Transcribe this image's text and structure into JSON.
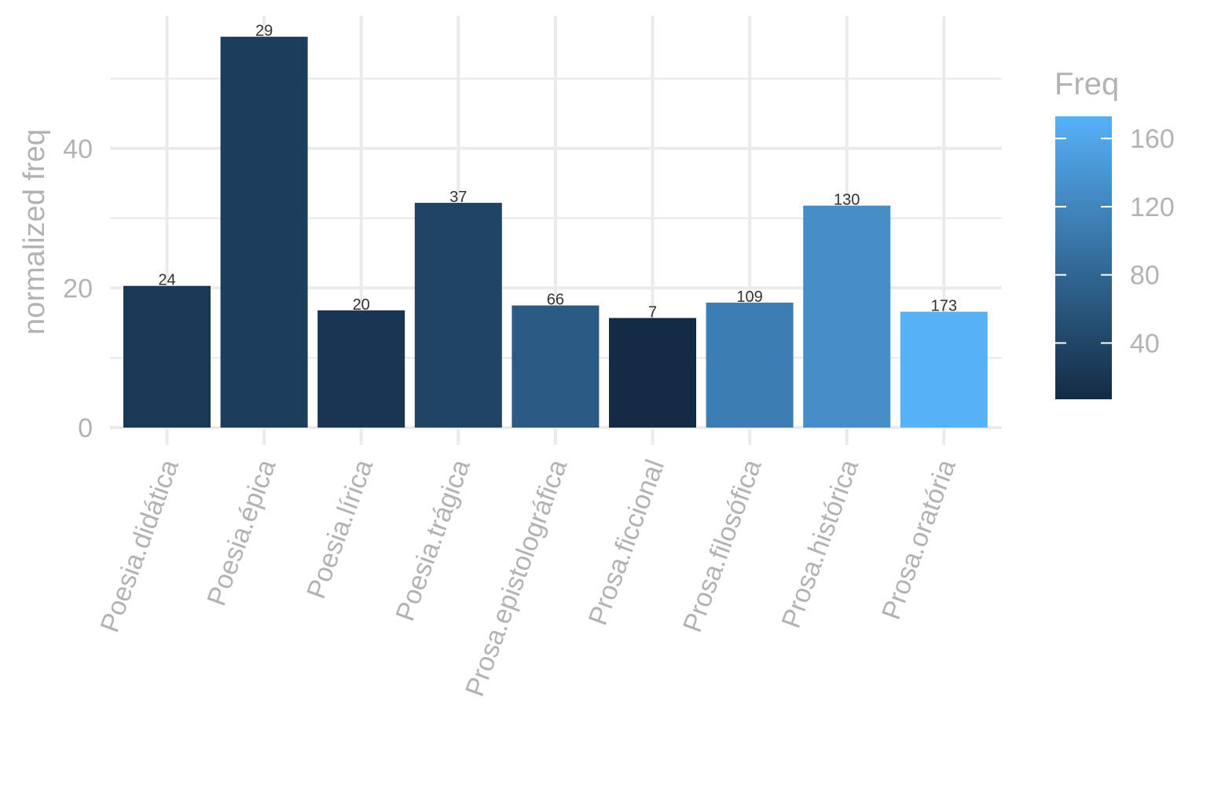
{
  "chart_data": {
    "type": "bar",
    "title": "",
    "xlabel": "",
    "ylabel": "normalized freq",
    "ylim": [
      0,
      59
    ],
    "yticks": [
      0,
      20,
      40
    ],
    "grid": true,
    "categories": [
      "Poesia.didática",
      "Poesia.épica",
      "Poesia.lírica",
      "Poesia.trágica",
      "Prosa.epistolográfica",
      "Prosa.ficcional",
      "Prosa.filosófica",
      "Prosa.histórica",
      "Prosa.oratória"
    ],
    "values": [
      20.3,
      56.0,
      16.8,
      32.2,
      17.5,
      15.7,
      17.9,
      31.8,
      16.6
    ],
    "freq": [
      24,
      29,
      20,
      37,
      66,
      7,
      109,
      130,
      173
    ],
    "bar_labels": [
      "24",
      "29",
      "20",
      "37",
      "66",
      "7",
      "109",
      "130",
      "173"
    ],
    "legend": {
      "title": "Freq",
      "position": "right",
      "ticks": [
        40,
        80,
        120,
        160
      ],
      "tick_labels": [
        "40",
        "80",
        "120",
        "160"
      ],
      "range": [
        7,
        173
      ],
      "color_low": "#132b43",
      "color_high": "#56b1f7"
    }
  }
}
